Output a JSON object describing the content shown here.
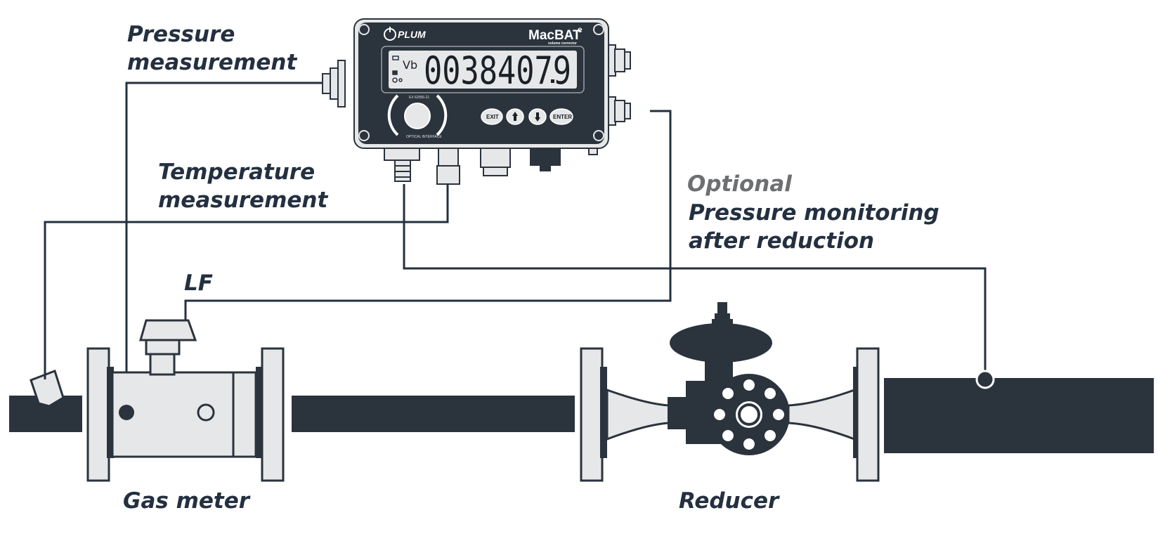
{
  "labels": {
    "pressure_measurement": [
      "Pressure",
      "measurement"
    ],
    "temperature_measurement": [
      "Temperature",
      "measurement"
    ],
    "optional": "Optional",
    "pressure_monitoring": [
      "Pressure monitoring",
      "after reduction"
    ],
    "lf": "LF",
    "gas_meter": "Gas meter",
    "reducer": "Reducer"
  },
  "device": {
    "brand_logo": "PLUM",
    "model": "MacBAT",
    "model_sup": "e",
    "subtitle": "volume corrector",
    "display_value": "00384079",
    "display_indicator": "Vb",
    "cert_text": "EX 62056-21",
    "optical_text": "OPTICAL INTERFACE",
    "buttons": [
      "EXIT",
      "",
      "",
      "ENTER"
    ]
  },
  "colors": {
    "dark": "#2b333d",
    "line": "#243040",
    "light": "#e6e7e8",
    "optional_gray": "#6d6f73"
  },
  "icons": {
    "up_button": "arrow-up-icon",
    "down_button": "arrow-down-icon",
    "logo_mark": "plum-logo-icon"
  }
}
